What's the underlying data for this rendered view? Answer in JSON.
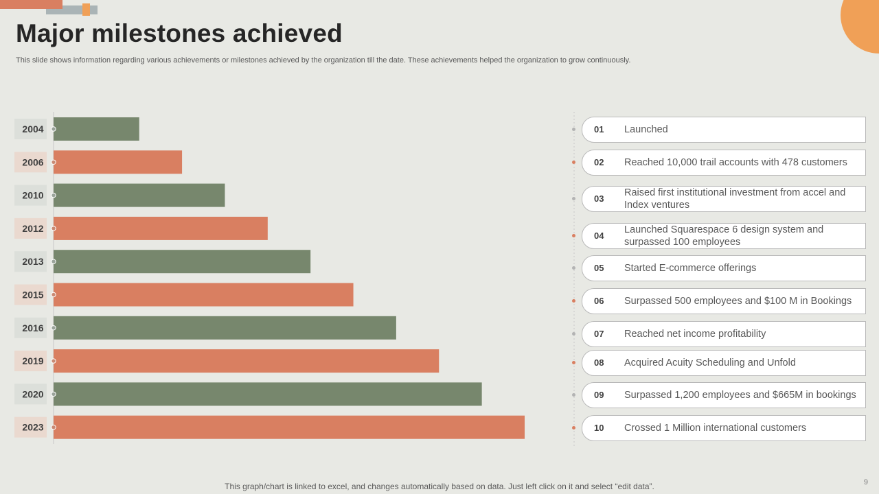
{
  "slide": {
    "title": "Major milestones achieved",
    "subtitle": "This slide shows information regarding various achievements or milestones achieved by the organization till the date. These achievements helped the organization to grow continuously.",
    "footnote": "This graph/chart is linked to excel, and changes automatically based on data. Just left click on it and select “edit data”.",
    "page_number": "9"
  },
  "colors": {
    "green": "#77876d",
    "orange": "#d97f61",
    "green_label_bg": "#dcdfda",
    "orange_label_bg": "#ead9cf",
    "accent_circle": "#f0a057",
    "deco_grey": "#aab4b6",
    "dot_grey": "#b3b3b3"
  },
  "chart_data": {
    "type": "bar",
    "orientation": "horizontal",
    "categories": [
      "2004",
      "2006",
      "2010",
      "2012",
      "2013",
      "2015",
      "2016",
      "2019",
      "2020",
      "2023"
    ],
    "values": [
      2,
      3,
      4,
      5,
      6,
      7,
      8,
      9,
      10,
      11
    ],
    "bar_colors": [
      "green",
      "orange",
      "green",
      "orange",
      "green",
      "orange",
      "green",
      "orange",
      "green",
      "orange"
    ],
    "axis_max": 12.3,
    "title": "",
    "xlabel": "",
    "ylabel": "",
    "grid": false,
    "legend": "none"
  },
  "milestones": [
    {
      "num": "01",
      "text": "Launched",
      "color": "green"
    },
    {
      "num": "02",
      "text": "Reached 10,000 trail accounts  with 478 customers",
      "color": "orange"
    },
    {
      "num": "03",
      "text": "Raised first institutional  investment from accel and Index ventures",
      "color": "green"
    },
    {
      "num": "04",
      "text": "Launched Squarespace 6 design system and surpassed 100 employees",
      "color": "orange"
    },
    {
      "num": "05",
      "text": "Started E-commerce offerings",
      "color": "green"
    },
    {
      "num": "06",
      "text": "Surpassed 500 employees and $100 M in Bookings",
      "color": "orange"
    },
    {
      "num": "07",
      "text": "Reached net income profitability",
      "color": "green"
    },
    {
      "num": "08",
      "text": "Acquired Acuity Scheduling and Unfold",
      "color": "orange"
    },
    {
      "num": "09",
      "text": "Surpassed 1,200 employees and $665M in bookings",
      "color": "green"
    },
    {
      "num": "10",
      "text": "Crossed 1 Million  international customers",
      "color": "orange"
    }
  ]
}
